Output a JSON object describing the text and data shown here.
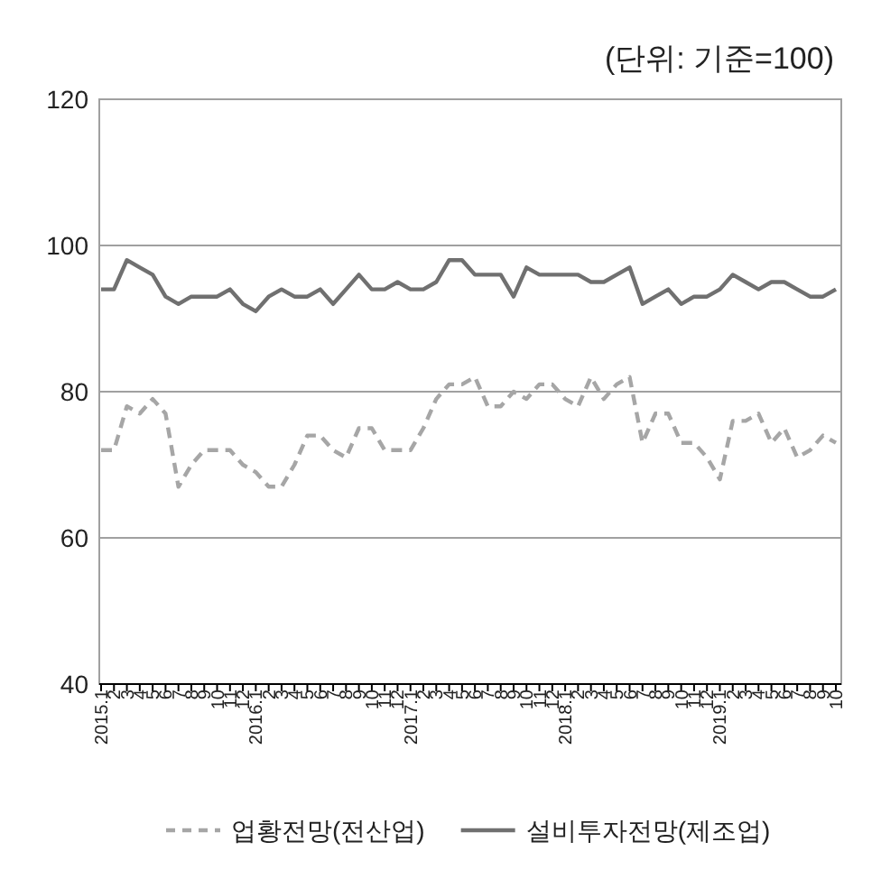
{
  "chart_data": {
    "type": "line",
    "title": "(단위: 기준=100)",
    "categories": [
      "2015.1",
      "2",
      "3",
      "4",
      "5",
      "6",
      "7",
      "8",
      "9",
      "10",
      "11",
      "12",
      "2016.1",
      "2",
      "3",
      "4",
      "5",
      "6",
      "7",
      "8",
      "9",
      "10",
      "11",
      "12",
      "2017.1",
      "2",
      "3",
      "4",
      "5",
      "6",
      "7",
      "8",
      "9",
      "10",
      "11",
      "12",
      "2018.1",
      "2",
      "3",
      "4",
      "5",
      "6",
      "7",
      "8",
      "9",
      "10",
      "11",
      "12",
      "2019.1",
      "2",
      "3",
      "4",
      "5",
      "6",
      "7",
      "8",
      "9",
      "10"
    ],
    "series": [
      {
        "name": "업황전망(전산업)",
        "color": "#a6a6a6",
        "line_style": "dashed",
        "values": [
          72,
          72,
          78,
          77,
          79,
          77,
          67,
          70,
          72,
          72,
          72,
          70,
          69,
          67,
          67,
          70,
          74,
          74,
          72,
          71,
          75,
          75,
          72,
          72,
          72,
          75,
          79,
          81,
          81,
          82,
          78,
          78,
          80,
          79,
          81,
          81,
          79,
          78,
          82,
          79,
          81,
          82,
          73,
          77,
          77,
          73,
          73,
          71,
          68,
          76,
          76,
          77,
          73,
          75,
          71,
          72,
          74,
          73
        ]
      },
      {
        "name": "설비투자전망(제조업)",
        "color": "#707070",
        "line_style": "solid",
        "values": [
          94,
          94,
          98,
          97,
          96,
          93,
          92,
          93,
          93,
          93,
          94,
          92,
          91,
          93,
          94,
          93,
          93,
          94,
          92,
          94,
          96,
          94,
          94,
          95,
          94,
          94,
          95,
          98,
          98,
          96,
          96,
          96,
          93,
          97,
          96,
          96,
          96,
          96,
          95,
          95,
          96,
          97,
          92,
          93,
          94,
          92,
          93,
          93,
          94,
          96,
          95,
          94,
          95,
          95,
          94,
          93,
          93,
          94
        ]
      }
    ],
    "ylim": [
      40,
      120
    ],
    "yticks": [
      40,
      60,
      80,
      100,
      120
    ],
    "grid": "y",
    "legend": "bottom"
  }
}
